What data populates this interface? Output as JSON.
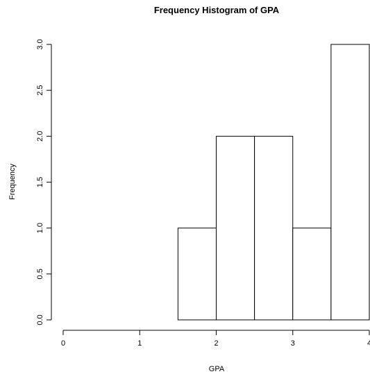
{
  "chart_data": {
    "type": "bar",
    "title": "Frequency Histogram of GPA",
    "xlabel": "GPA",
    "ylabel": "Frequency",
    "bins": [
      {
        "start": 0.0,
        "end": 0.5,
        "value": 0
      },
      {
        "start": 0.5,
        "end": 1.0,
        "value": 0
      },
      {
        "start": 1.0,
        "end": 1.5,
        "value": 0
      },
      {
        "start": 1.5,
        "end": 2.0,
        "value": 1
      },
      {
        "start": 2.0,
        "end": 2.5,
        "value": 2
      },
      {
        "start": 2.5,
        "end": 3.0,
        "value": 2
      },
      {
        "start": 3.0,
        "end": 3.5,
        "value": 1
      },
      {
        "start": 3.5,
        "end": 4.0,
        "value": 3
      }
    ],
    "xlim": [
      0,
      4
    ],
    "ylim": [
      0,
      3
    ],
    "xticks": [
      0,
      1,
      2,
      3,
      4
    ],
    "xtick_labels": [
      "0",
      "1",
      "2",
      "3",
      "4"
    ],
    "yticks": [
      0,
      0.5,
      1,
      1.5,
      2,
      2.5,
      3
    ],
    "ytick_labels": [
      "0.0",
      "0.5",
      "1.0",
      "1.5",
      "2.0",
      "2.5",
      "3.0"
    ],
    "grid": false,
    "bar_fill": "#ffffff",
    "bar_stroke": "#000000"
  }
}
